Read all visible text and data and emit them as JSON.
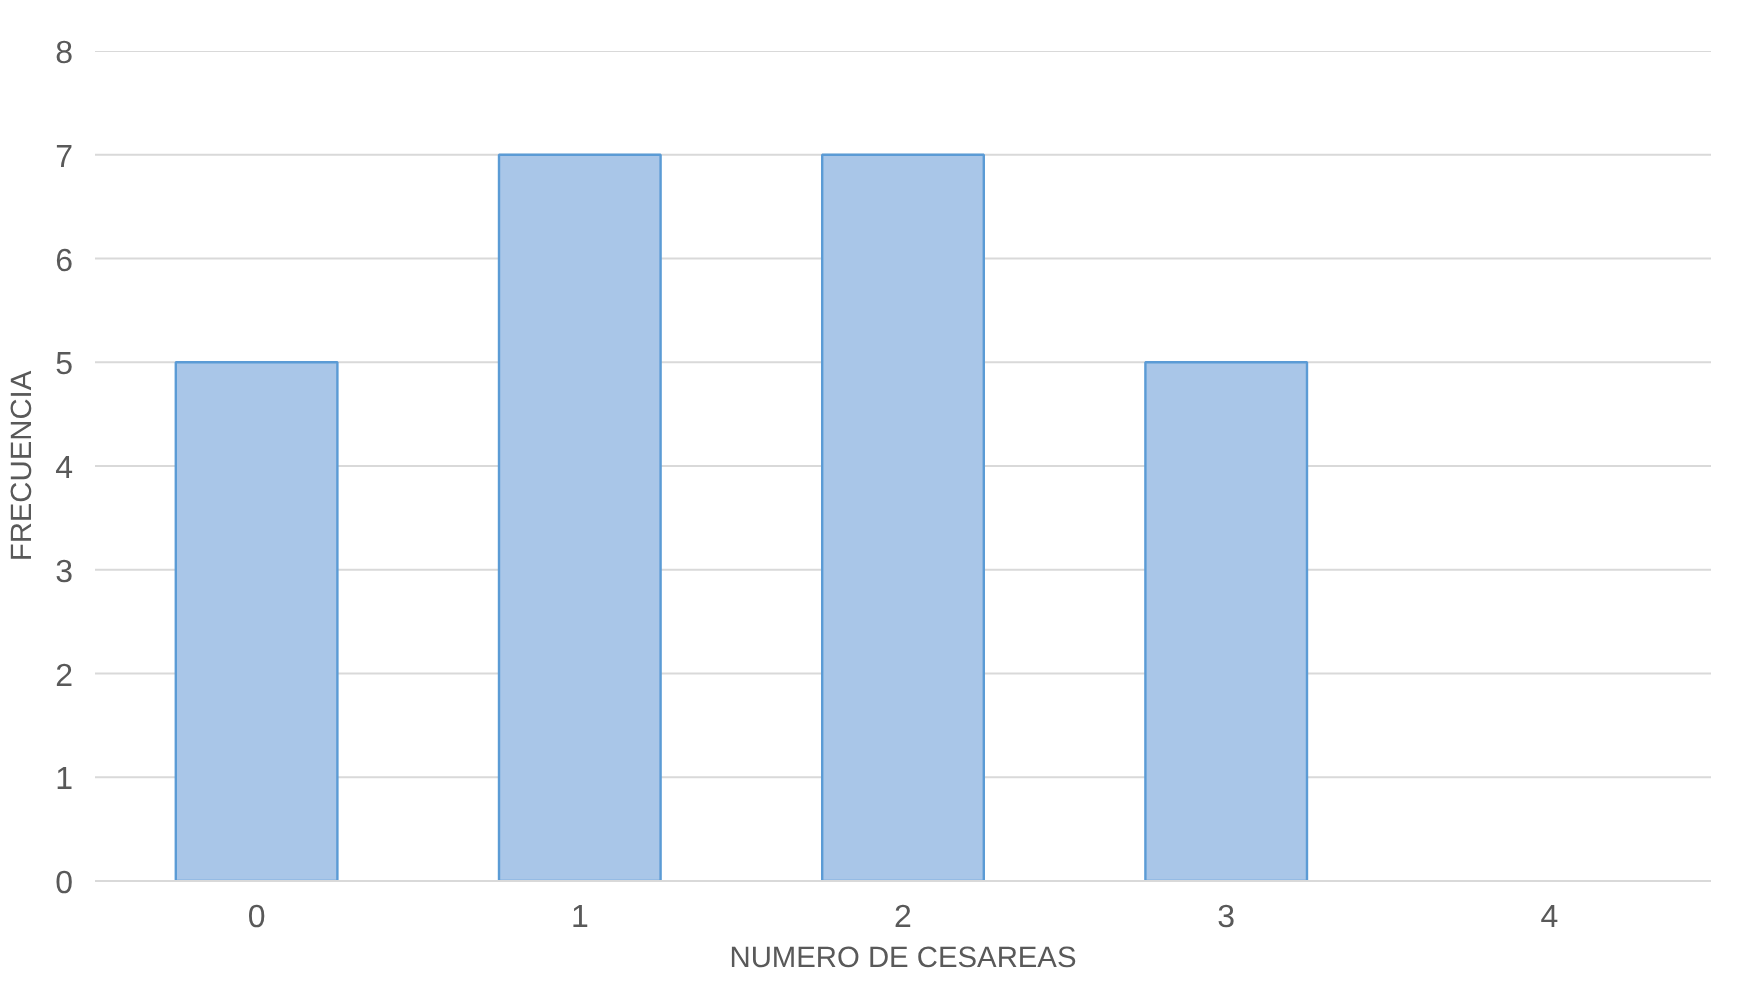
{
  "chart_data": {
    "type": "bar",
    "xlabel": "NUMERO DE CESAREAS",
    "ylabel": "FRECUENCIA",
    "categories": [
      "0",
      "1",
      "2",
      "3",
      "4"
    ],
    "values": [
      5,
      7,
      7,
      5,
      null
    ],
    "color": "#a9c6e8",
    "ylim": [
      0,
      8
    ],
    "yticks": [
      0,
      1,
      2,
      3,
      4,
      5,
      6,
      7,
      8
    ],
    "grid": "y"
  }
}
